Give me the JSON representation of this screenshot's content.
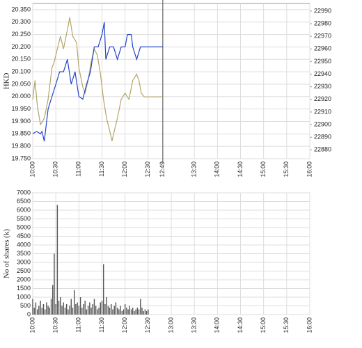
{
  "chart_data": [
    {
      "type": "line",
      "ylabel": "HKD",
      "xlim": [
        600,
        960
      ],
      "xticks": [
        {
          "value": 600,
          "label": "10:00"
        },
        {
          "value": 630,
          "label": "10:30"
        },
        {
          "value": 660,
          "label": "11:00"
        },
        {
          "value": 690,
          "label": "11:30"
        },
        {
          "value": 720,
          "label": "12:00"
        },
        {
          "value": 750,
          "label": "12:30"
        },
        {
          "value": 769,
          "label": "12:49"
        },
        {
          "value": 810,
          "label": "13:30"
        },
        {
          "value": 840,
          "label": "14:00"
        },
        {
          "value": 870,
          "label": "14:30"
        },
        {
          "value": 900,
          "label": "15:00"
        },
        {
          "value": 930,
          "label": "15:30"
        },
        {
          "value": 960,
          "label": "16:00"
        }
      ],
      "vline": 769,
      "ylim": [
        19.75,
        20.375
      ],
      "yticks": [
        {
          "value": 19.75,
          "label": "19.750"
        },
        {
          "value": 19.8,
          "label": "19.800"
        },
        {
          "value": 19.85,
          "label": "19.850"
        },
        {
          "value": 19.9,
          "label": "19.900"
        },
        {
          "value": 19.95,
          "label": "19.950"
        },
        {
          "value": 20.0,
          "label": "20.000"
        },
        {
          "value": 20.05,
          "label": "20.050"
        },
        {
          "value": 20.1,
          "label": "20.100"
        },
        {
          "value": 20.15,
          "label": "20.150"
        },
        {
          "value": 20.2,
          "label": "20.200"
        },
        {
          "value": 20.25,
          "label": "20.250"
        },
        {
          "value": 20.3,
          "label": "20.300"
        },
        {
          "value": 20.35,
          "label": "20.350"
        }
      ],
      "y2lim": [
        22873,
        22996
      ],
      "y2ticks": [
        22880,
        22890,
        22900,
        22910,
        22920,
        22930,
        22940,
        22950,
        22960,
        22970,
        22980,
        22990
      ],
      "grid": true,
      "series": [
        {
          "color": "#b3a667",
          "axis": "y2",
          "x": [
            600,
            603,
            606,
            610,
            615,
            620,
            625,
            628,
            632,
            636,
            640,
            645,
            648,
            652,
            657,
            660,
            665,
            668,
            672,
            676,
            680,
            684,
            688,
            692,
            696,
            700,
            703,
            706,
            710,
            715,
            720,
            725,
            730,
            735,
            738,
            741,
            745,
            769
          ],
          "values": [
            22920,
            22935,
            22915,
            22900,
            22905,
            22920,
            22945,
            22950,
            22960,
            22970,
            22960,
            22975,
            22985,
            22970,
            22965,
            22945,
            22930,
            22925,
            22935,
            22950,
            22960,
            22955,
            22940,
            22920,
            22905,
            22895,
            22887,
            22895,
            22905,
            22920,
            22925,
            22920,
            22935,
            22940,
            22935,
            22925,
            22922,
            22922
          ]
        },
        {
          "color": "#2444c8",
          "axis": "y",
          "x": [
            600,
            605,
            610,
            612,
            615,
            620,
            625,
            630,
            635,
            640,
            645,
            650,
            655,
            660,
            665,
            670,
            675,
            680,
            685,
            690,
            693,
            695,
            700,
            705,
            710,
            715,
            720,
            723,
            728,
            730,
            735,
            740,
            745,
            748,
            769
          ],
          "values": [
            19.85,
            19.86,
            19.85,
            19.86,
            19.82,
            19.95,
            20.0,
            20.05,
            20.1,
            20.1,
            20.15,
            20.05,
            20.1,
            20.0,
            19.99,
            20.05,
            20.1,
            20.2,
            20.2,
            20.25,
            20.3,
            20.15,
            20.2,
            20.2,
            20.15,
            20.2,
            20.2,
            20.25,
            20.25,
            20.2,
            20.15,
            20.2,
            20.2,
            20.2,
            20.2
          ]
        }
      ]
    },
    {
      "type": "bar",
      "ylabel": "No of shares (k)",
      "color": "#555555",
      "xlim": [
        600,
        960
      ],
      "xticks": [
        {
          "value": 600,
          "label": "10:00"
        },
        {
          "value": 630,
          "label": "10:30"
        },
        {
          "value": 660,
          "label": "11:00"
        },
        {
          "value": 690,
          "label": "11:30"
        },
        {
          "value": 720,
          "label": "12:00"
        },
        {
          "value": 750,
          "label": "12:30"
        },
        {
          "value": 780,
          "label": "13:00"
        },
        {
          "value": 810,
          "label": "13:30"
        },
        {
          "value": 840,
          "label": "14:00"
        },
        {
          "value": 870,
          "label": "14:30"
        },
        {
          "value": 900,
          "label": "15:00"
        },
        {
          "value": 930,
          "label": "15:30"
        },
        {
          "value": 960,
          "label": "16:00"
        }
      ],
      "ylim": [
        0,
        7000
      ],
      "yticks": [
        0,
        500,
        1000,
        1500,
        2000,
        2500,
        3000,
        3500,
        4000,
        4500,
        5000,
        5500,
        6000,
        6500,
        7000
      ],
      "grid": true,
      "x": [
        600,
        602,
        604,
        606,
        608,
        610,
        612,
        614,
        616,
        618,
        620,
        622,
        624,
        626,
        628,
        630,
        632,
        634,
        636,
        638,
        640,
        642,
        644,
        646,
        648,
        650,
        652,
        654,
        656,
        658,
        660,
        662,
        664,
        666,
        668,
        670,
        672,
        674,
        676,
        678,
        680,
        682,
        684,
        686,
        688,
        690,
        692,
        694,
        696,
        698,
        700,
        702,
        704,
        706,
        708,
        710,
        712,
        714,
        716,
        718,
        720,
        722,
        724,
        726,
        728,
        730,
        732,
        734,
        736,
        738,
        740,
        742,
        744,
        746,
        748,
        750
      ],
      "values": [
        900,
        400,
        700,
        300,
        500,
        800,
        400,
        600,
        300,
        700,
        500,
        400,
        900,
        1700,
        3500,
        600,
        6300,
        800,
        1000,
        500,
        700,
        400,
        600,
        300,
        500,
        900,
        400,
        1400,
        600,
        700,
        500,
        1000,
        400,
        600,
        800,
        300,
        500,
        700,
        400,
        600,
        900,
        500,
        300,
        400,
        700,
        800,
        2900,
        600,
        1000,
        500,
        400,
        600,
        300,
        500,
        700,
        400,
        300,
        500,
        200,
        300,
        600,
        400,
        300,
        500,
        300,
        400,
        200,
        300,
        400,
        300,
        900,
        400,
        200,
        300,
        200,
        300
      ]
    }
  ]
}
